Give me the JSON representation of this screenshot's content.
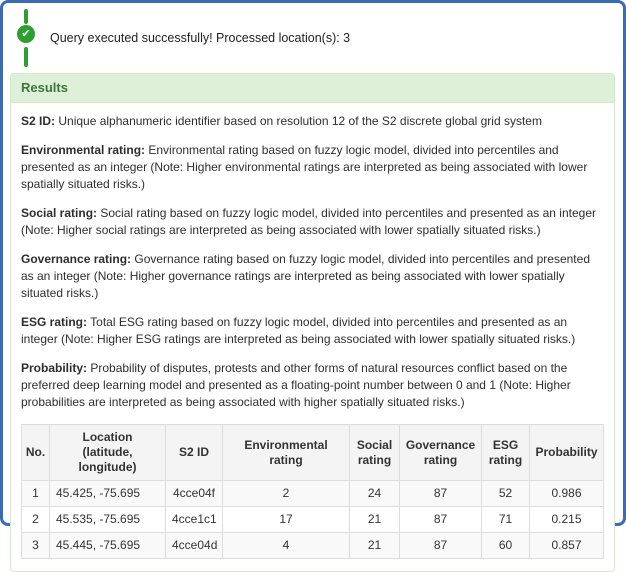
{
  "status": {
    "icon": "check-circle-timeline",
    "message": "Query executed successfully! Processed location(s): 3",
    "check_glyph": "✔"
  },
  "results": {
    "title": "Results",
    "definitions": [
      {
        "term": "S2 ID:",
        "text": "Unique alphanumeric identifier based on resolution 12 of the S2 discrete global grid system"
      },
      {
        "term": "Environmental rating:",
        "text": "Environmental rating based on fuzzy logic model, divided into percentiles and presented as an integer (Note: Higher environmental ratings are interpreted as being associated with lower spatially situated risks.)"
      },
      {
        "term": "Social rating:",
        "text": "Social rating based on fuzzy logic model, divided into percentiles and presented as an integer (Note: Higher social ratings are interpreted as being associated with lower spatially situated risks.)"
      },
      {
        "term": "Governance rating:",
        "text": "Governance rating based on fuzzy logic model, divided into percentiles and presented as an integer (Note: Higher governance ratings are interpreted as being associated with lower spatially situated risks.)"
      },
      {
        "term": "ESG rating:",
        "text": "Total ESG rating based on fuzzy logic model, divided into percentiles and presented as an integer (Note: Higher ESG ratings are interpreted as being associated with lower spatially situated risks.)"
      },
      {
        "term": "Probability:",
        "text": "Probability of disputes, protests and other forms of natural resources conflict based on the preferred deep learning model and presented as a floating-point number between 0 and 1 (Note: Higher probabilities are interpreted as being associated with higher spatially situated risks.)"
      }
    ],
    "table": {
      "headers": [
        "No.",
        "Location\n(latitude, longitude)",
        "S2 ID",
        "Environmental\nrating",
        "Social\nrating",
        "Governance\nrating",
        "ESG\nrating",
        "Probability"
      ],
      "rows": [
        [
          "1",
          "45.425, -75.695",
          "4cce04f",
          "2",
          "24",
          "87",
          "52",
          "0.986"
        ],
        [
          "2",
          "45.535, -75.695",
          "4cce1c1",
          "17",
          "21",
          "87",
          "71",
          "0.215"
        ],
        [
          "3",
          "45.445, -75.695",
          "4cce04d",
          "4",
          "21",
          "87",
          "60",
          "0.857"
        ]
      ]
    }
  },
  "colors": {
    "frame_border": "#3a6cb4",
    "success_green": "#2f9e31",
    "panel_border": "#d6e9c6",
    "panel_heading_bg": "#dff0d8",
    "panel_heading_text": "#3c763d",
    "table_border": "#dddddd",
    "table_header_bg": "#f4f4f4",
    "row_stripe_bg": "#f9f9f9"
  }
}
